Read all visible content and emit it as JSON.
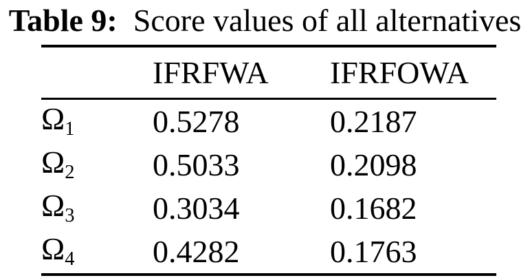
{
  "caption": {
    "label": "Table 9:",
    "text": "Score values of all alternatives"
  },
  "table": {
    "columns": [
      {
        "label": "IFRFWA"
      },
      {
        "label": "IFRFOWA"
      }
    ],
    "rows": [
      {
        "label_base": "Ω",
        "label_sub": "1",
        "values": [
          "0.5278",
          "0.2187"
        ]
      },
      {
        "label_base": "Ω",
        "label_sub": "2",
        "values": [
          "0.5033",
          "0.2098"
        ]
      },
      {
        "label_base": "Ω",
        "label_sub": "3",
        "values": [
          "0.3034",
          "0.1682"
        ]
      },
      {
        "label_base": "Ω",
        "label_sub": "4",
        "values": [
          "0.4282",
          "0.1763"
        ]
      }
    ]
  },
  "colors": {
    "text": "#000000",
    "background": "#ffffff",
    "rule": "#000000"
  }
}
